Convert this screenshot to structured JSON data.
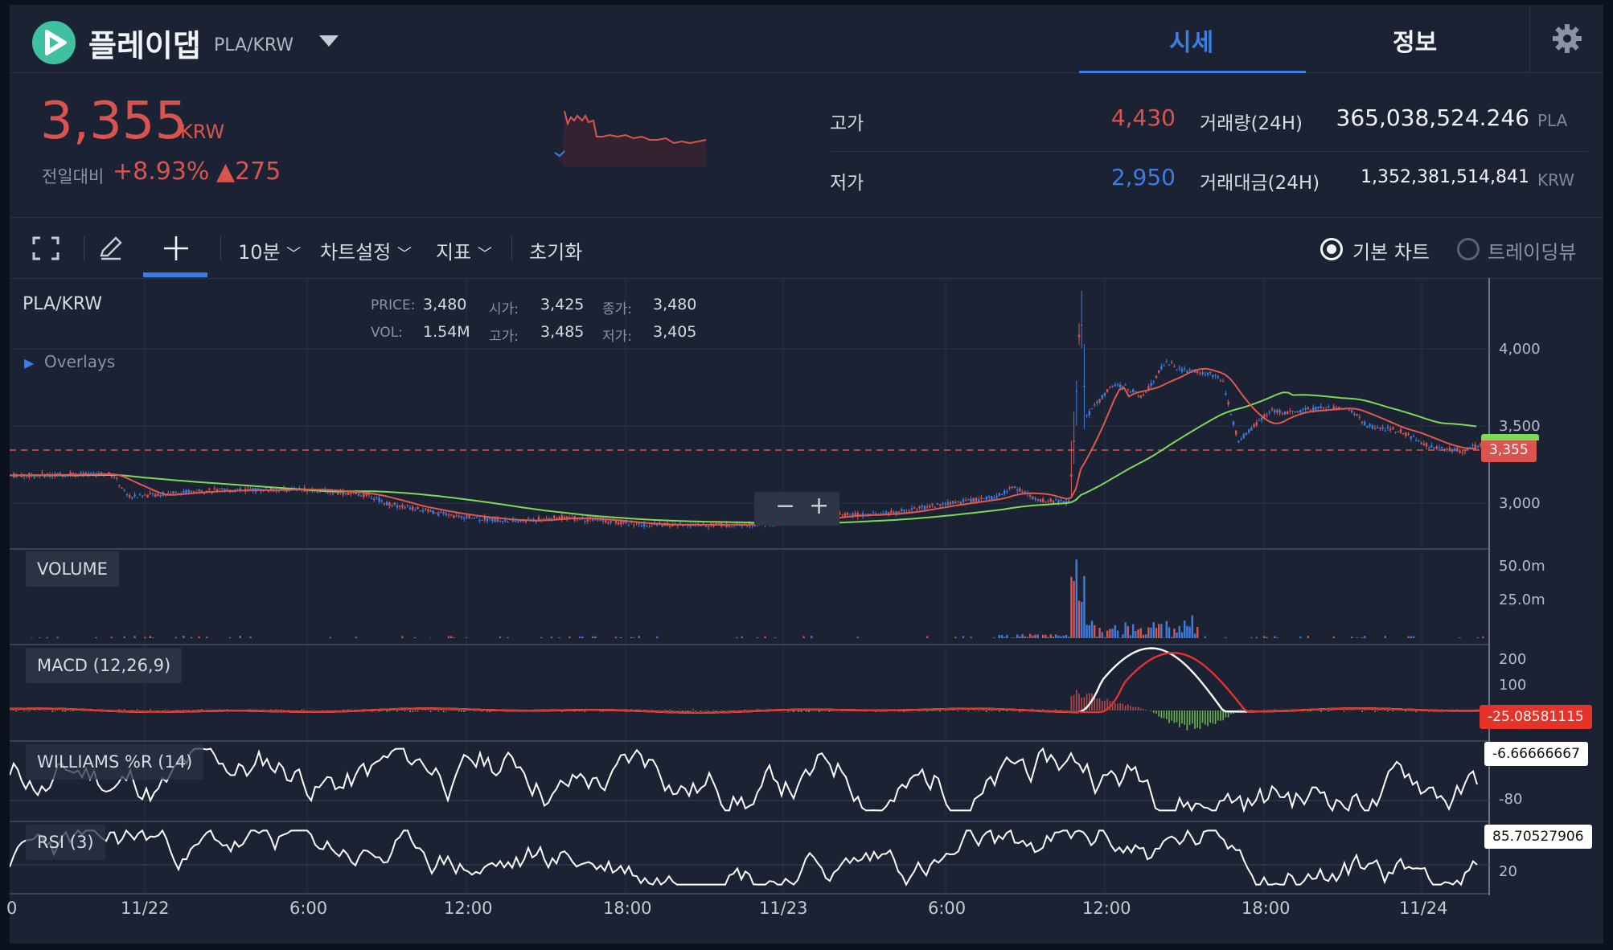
{
  "header": {
    "coin_name": "플레이댑",
    "pair": "PLA/KRW",
    "tab_price": "시세",
    "tab_info": "정보"
  },
  "ticker": {
    "price": "3,355",
    "price_unit": "KRW",
    "change_label": "전일대비",
    "change_pct": "+8.93%",
    "change_amt": "▲275",
    "high_label": "고가",
    "high": "4,430",
    "low_label": "저가",
    "low": "2,950",
    "volume_label": "거래량(24H)",
    "volume": "365,038,524.246",
    "volume_unit": "PLA",
    "amount_label": "거래대금(24H)",
    "amount": "1,352,381,514,841",
    "amount_unit": "KRW"
  },
  "toolbar": {
    "interval": "10분",
    "chart_settings": "차트설정",
    "indicators": "지표",
    "reset": "초기화",
    "basic_chart": "기본 차트",
    "trading_view": "트레이딩뷰"
  },
  "legend": {
    "symbol": "PLA/KRW",
    "price_k": "PRICE:",
    "price_v": "3,480",
    "open_k": "시가:",
    "open_v": "3,425",
    "close_k": "종가:",
    "close_v": "3,480",
    "vol_k": "VOL:",
    "vol_v": "1.54M",
    "high_k": "고가:",
    "high_v": "3,485",
    "low_k": "저가:",
    "low_v": "3,405",
    "overlays": "Overlays"
  },
  "panels": {
    "volume": "VOLUME",
    "macd": "MACD (12,26,9)",
    "williams": "WILLIAMS %R (14)",
    "rsi": "RSI (3)"
  },
  "axes": {
    "price_ticks": [
      "4,000",
      "3,500",
      "3,000"
    ],
    "volume_ticks": [
      "50.0m",
      "25.0m"
    ],
    "macd_ticks": [
      "200",
      "100"
    ],
    "williams_ticks": [
      "-80"
    ],
    "rsi_ticks": [
      "20"
    ],
    "x_ticks": [
      "0",
      "11/22",
      "6:00",
      "12:00",
      "18:00",
      "11/23",
      "6:00",
      "12:00",
      "18:00",
      "11/24"
    ]
  },
  "tags": {
    "price": "3,355",
    "macd": "-25.08581115",
    "williams": "-6.66666667",
    "rsi": "85.70527906"
  },
  "colors": {
    "up": "#d9544f",
    "down": "#3b7de0",
    "ma_fast": "#e0584f",
    "ma_slow": "#7ed957",
    "accent": "#3b7de0"
  }
}
